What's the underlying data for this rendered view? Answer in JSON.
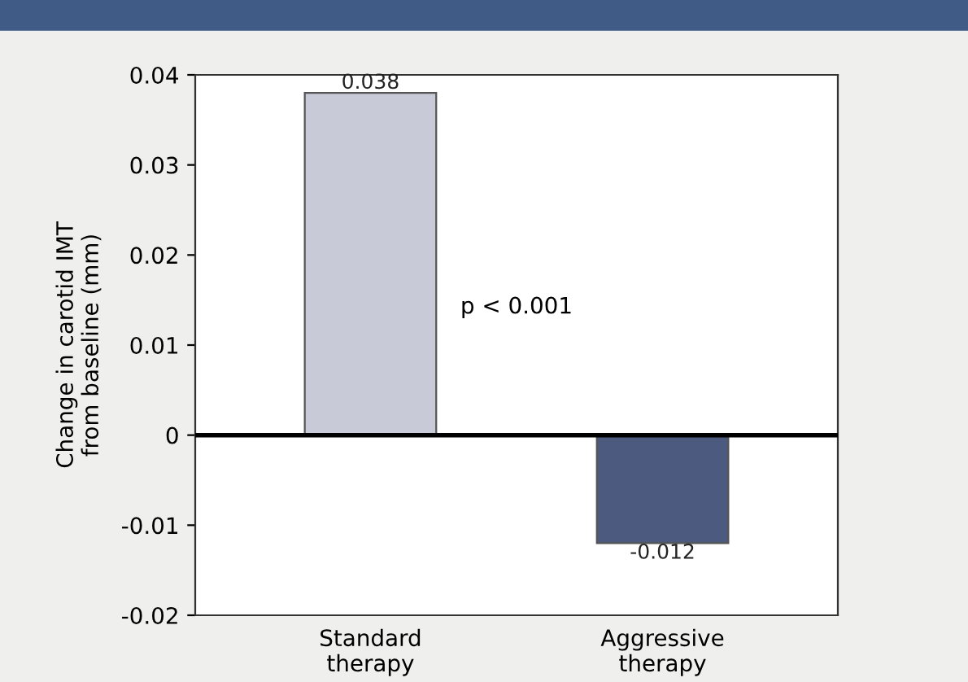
{
  "chart_data": {
    "type": "bar",
    "ylabel": "Change in carotid IMT\nfrom baseline (mm)",
    "categories": [
      "Standard\ntherapy",
      "Aggressive\ntherapy"
    ],
    "values": [
      0.038,
      -0.012
    ],
    "colors": [
      "#c9cad8",
      "#4b5a7e"
    ],
    "ylim": [
      -0.02,
      0.04
    ],
    "yticks": [
      -0.02,
      -0.01,
      0,
      0.01,
      0.02,
      0.03,
      0.04
    ],
    "data_labels": true,
    "ref_lines": [
      {
        "axis": "y",
        "value": 0,
        "color": "#000000"
      }
    ],
    "annotations": [
      "p < 0.001"
    ]
  }
}
